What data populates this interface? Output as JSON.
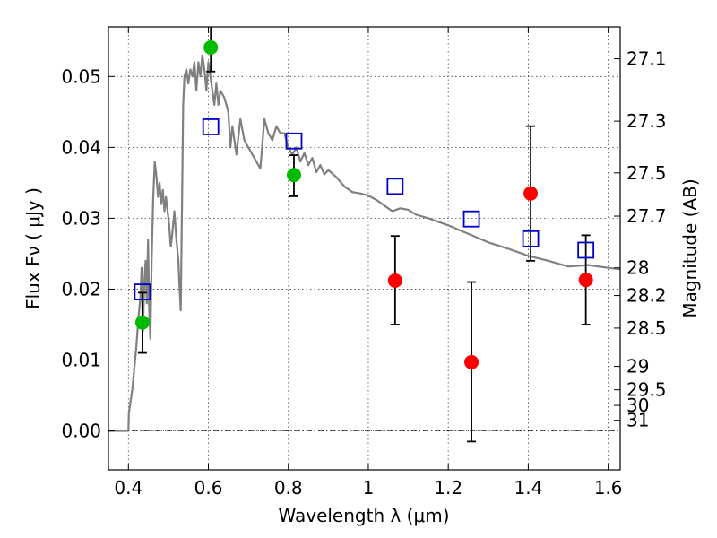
{
  "chart_data": {
    "type": "scatter",
    "xlabel": "Wavelength  λ (μm)",
    "ylabel": "Flux  Fν  ( μJy )",
    "ylabel_right": "Magnitude (AB)",
    "xlim": [
      0.35,
      1.63
    ],
    "ylim": [
      -0.0055,
      0.057
    ],
    "grid": true,
    "x_ticks": [
      0.4,
      0.6,
      0.8,
      1.0,
      1.2,
      1.4,
      1.6
    ],
    "x_tick_labels": [
      "0.4",
      "0.6",
      "0.8",
      "1",
      "1.2",
      "1.4",
      "1.6"
    ],
    "y_ticks": [
      0.0,
      0.01,
      0.02,
      0.03,
      0.04,
      0.05
    ],
    "y_tick_labels": [
      "0.00",
      "0.01",
      "0.02",
      "0.03",
      "0.04",
      "0.05"
    ],
    "right_ticks": [
      {
        "label": "27.1",
        "flux": 0.0525
      },
      {
        "label": "27.3",
        "flux": 0.0437
      },
      {
        "label": "27.5",
        "flux": 0.0364
      },
      {
        "label": "27.7",
        "flux": 0.0303
      },
      {
        "label": "28",
        "flux": 0.023
      },
      {
        "label": "28.2",
        "flux": 0.0191
      },
      {
        "label": "28.5",
        "flux": 0.0145
      },
      {
        "label": "29",
        "flux": 0.0091
      },
      {
        "label": "29.5",
        "flux": 0.0058
      },
      {
        "label": "30",
        "flux": 0.0036
      },
      {
        "label": "31",
        "flux": 0.0015
      }
    ],
    "sed_model": {
      "color": "#808080",
      "x": [
        0.35,
        0.4,
        0.401,
        0.405,
        0.41,
        0.415,
        0.42,
        0.425,
        0.43,
        0.433,
        0.436,
        0.44,
        0.443,
        0.446,
        0.449,
        0.452,
        0.455,
        0.458,
        0.462,
        0.466,
        0.47,
        0.474,
        0.478,
        0.482,
        0.486,
        0.49,
        0.494,
        0.498,
        0.502,
        0.506,
        0.51,
        0.515,
        0.52,
        0.525,
        0.528,
        0.531,
        0.534,
        0.537,
        0.54,
        0.545,
        0.55,
        0.555,
        0.56,
        0.565,
        0.57,
        0.575,
        0.58,
        0.585,
        0.59,
        0.595,
        0.6,
        0.605,
        0.61,
        0.615,
        0.62,
        0.625,
        0.63,
        0.64,
        0.65,
        0.655,
        0.66,
        0.67,
        0.68,
        0.69,
        0.7,
        0.71,
        0.72,
        0.73,
        0.74,
        0.75,
        0.76,
        0.77,
        0.78,
        0.79,
        0.8,
        0.81,
        0.82,
        0.83,
        0.84,
        0.85,
        0.86,
        0.87,
        0.88,
        0.89,
        0.9,
        0.92,
        0.94,
        0.96,
        0.98,
        1.0,
        1.02,
        1.04,
        1.06,
        1.08,
        1.1,
        1.12,
        1.15,
        1.2,
        1.25,
        1.3,
        1.35,
        1.4,
        1.45,
        1.5,
        1.55,
        1.6,
        1.63
      ],
      "y": [
        0.0,
        0.0,
        0.0025,
        0.004,
        0.006,
        0.009,
        0.012,
        0.016,
        0.019,
        0.023,
        0.014,
        0.021,
        0.024,
        0.018,
        0.027,
        0.017,
        0.013,
        0.024,
        0.033,
        0.038,
        0.036,
        0.033,
        0.035,
        0.032,
        0.034,
        0.031,
        0.033,
        0.031,
        0.029,
        0.026,
        0.028,
        0.031,
        0.027,
        0.024,
        0.02,
        0.017,
        0.032,
        0.046,
        0.05,
        0.051,
        0.049,
        0.051,
        0.05,
        0.052,
        0.048,
        0.052,
        0.05,
        0.053,
        0.051,
        0.048,
        0.052,
        0.05,
        0.048,
        0.046,
        0.049,
        0.046,
        0.048,
        0.047,
        0.045,
        0.04,
        0.043,
        0.039,
        0.044,
        0.041,
        0.04,
        0.039,
        0.038,
        0.037,
        0.044,
        0.042,
        0.041,
        0.043,
        0.042,
        0.042,
        0.04,
        0.039,
        0.04,
        0.038,
        0.0392,
        0.0375,
        0.0385,
        0.0365,
        0.0375,
        0.0362,
        0.0368,
        0.0358,
        0.0345,
        0.0337,
        0.0335,
        0.0332,
        0.0326,
        0.0318,
        0.031,
        0.0314,
        0.0312,
        0.0305,
        0.03,
        0.029,
        0.0278,
        0.0266,
        0.0257,
        0.0247,
        0.024,
        0.0232,
        0.0234,
        0.023,
        0.0228
      ]
    },
    "series": [
      {
        "color": "#00bb00",
        "marker": "circle",
        "points": [
          {
            "x": 0.435,
            "y": 0.0153,
            "err_lo": 0.0043,
            "err_hi": 0.0042
          },
          {
            "x": 0.606,
            "y": 0.0541,
            "err_lo": 0.0034,
            "err_hi": 0.0034
          },
          {
            "x": 0.814,
            "y": 0.0361,
            "err_lo": 0.003,
            "err_hi": 0.0028
          }
        ]
      },
      {
        "color": "#ff0000",
        "marker": "circle",
        "points": [
          {
            "x": 1.067,
            "y": 0.0212,
            "err_lo": 0.0062,
            "err_hi": 0.0063
          },
          {
            "x": 1.258,
            "y": 0.0097,
            "err_lo": 0.0112,
            "err_hi": 0.0113
          },
          {
            "x": 1.406,
            "y": 0.0335,
            "err_lo": 0.0095,
            "err_hi": 0.0095
          },
          {
            "x": 1.544,
            "y": 0.0213,
            "err_lo": 0.0063,
            "err_hi": 0.0063
          }
        ]
      },
      {
        "color": "#0000cc",
        "marker": "square",
        "points": [
          {
            "x": 0.435,
            "y": 0.0196
          },
          {
            "x": 0.606,
            "y": 0.0429
          },
          {
            "x": 0.814,
            "y": 0.0409
          },
          {
            "x": 1.067,
            "y": 0.0345
          },
          {
            "x": 1.258,
            "y": 0.0299
          },
          {
            "x": 1.406,
            "y": 0.0271
          },
          {
            "x": 1.544,
            "y": 0.0255
          }
        ]
      }
    ]
  }
}
